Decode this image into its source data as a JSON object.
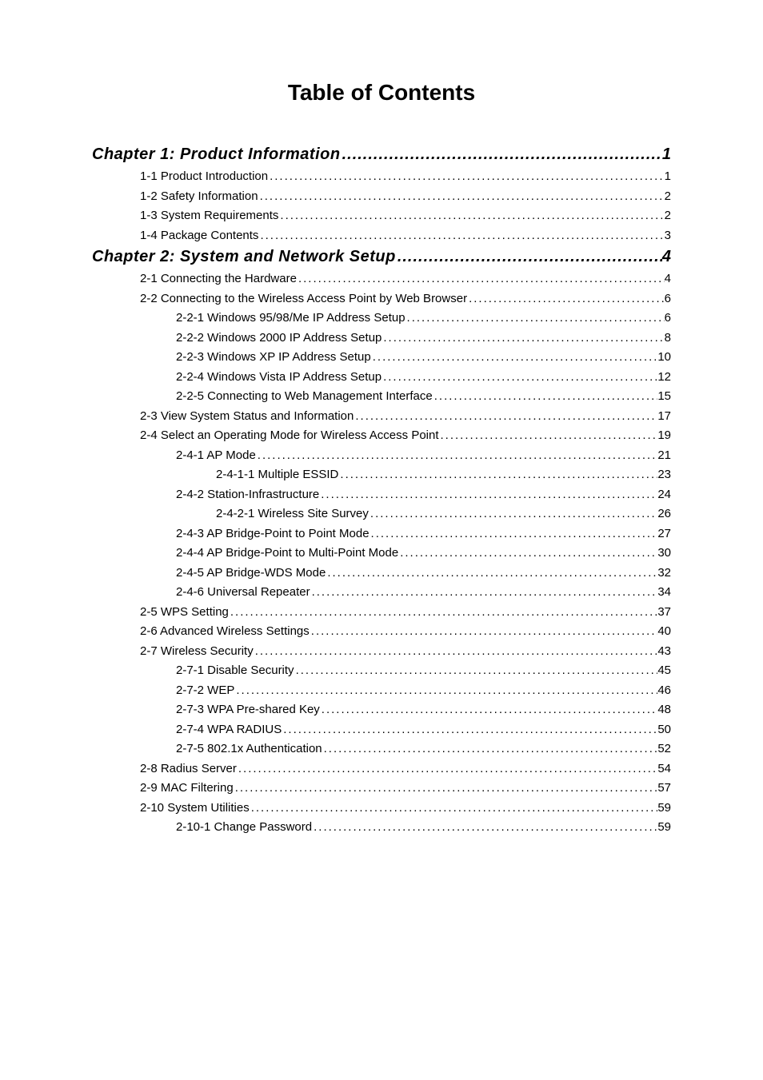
{
  "title": "Table of Contents",
  "entries": [
    {
      "type": "chapter",
      "label": "Chapter 1: Product Information",
      "page": "1"
    },
    {
      "type": "entry",
      "indent": 1,
      "label": "1-1 Product Introduction",
      "page": "1"
    },
    {
      "type": "entry",
      "indent": 1,
      "label": "1-2 Safety Information",
      "page": "2"
    },
    {
      "type": "entry",
      "indent": 1,
      "label": "1-3 System Requirements",
      "page": "2"
    },
    {
      "type": "entry",
      "indent": 1,
      "label": "1-4 Package Contents",
      "page": "3"
    },
    {
      "type": "chapter",
      "label": "Chapter 2: System and Network Setup",
      "page": "4"
    },
    {
      "type": "entry",
      "indent": 1,
      "label": "2-1 Connecting the Hardware",
      "page": "4"
    },
    {
      "type": "entry",
      "indent": 1,
      "label": "2-2 Connecting to the Wireless Access Point by Web Browser",
      "page": "6"
    },
    {
      "type": "entry",
      "indent": 2,
      "label": "2-2-1 Windows 95/98/Me IP Address Setup",
      "page": "6"
    },
    {
      "type": "entry",
      "indent": 2,
      "label": "2-2-2 Windows 2000 IP Address Setup",
      "page": "8"
    },
    {
      "type": "entry",
      "indent": 2,
      "label": "2-2-3 Windows XP IP Address Setup",
      "page": "10"
    },
    {
      "type": "entry",
      "indent": 2,
      "label": "2-2-4 Windows Vista IP Address Setup",
      "page": "12"
    },
    {
      "type": "entry",
      "indent": 2,
      "label": "2-2-5 Connecting to Web Management Interface",
      "page": "15"
    },
    {
      "type": "entry",
      "indent": 1,
      "label": "2-3 View System Status and Information",
      "page": "17"
    },
    {
      "type": "entry",
      "indent": 1,
      "label": "2-4 Select an Operating Mode for Wireless Access Point",
      "page": "19"
    },
    {
      "type": "entry",
      "indent": 2,
      "label": "2-4-1 AP Mode",
      "page": "21"
    },
    {
      "type": "entry",
      "indent": 3,
      "label": "2-4-1-1 Multiple ESSID",
      "page": "23"
    },
    {
      "type": "entry",
      "indent": 2,
      "label": "2-4-2 Station-Infrastructure",
      "page": "24"
    },
    {
      "type": "entry",
      "indent": 3,
      "label": "2-4-2-1 Wireless Site Survey",
      "page": "26"
    },
    {
      "type": "entry",
      "indent": 2,
      "label": "2-4-3 AP Bridge-Point to Point Mode",
      "page": "27"
    },
    {
      "type": "entry",
      "indent": 2,
      "label": "2-4-4 AP Bridge-Point to Multi-Point Mode",
      "page": "30"
    },
    {
      "type": "entry",
      "indent": 2,
      "label": "2-4-5 AP Bridge-WDS Mode",
      "page": "32"
    },
    {
      "type": "entry",
      "indent": 2,
      "label": "2-4-6 Universal Repeater",
      "page": "34"
    },
    {
      "type": "entry",
      "indent": 1,
      "label": "2-5 WPS Setting",
      "page": "37"
    },
    {
      "type": "entry",
      "indent": 1,
      "label": "2-6 Advanced Wireless Settings",
      "page": "40"
    },
    {
      "type": "entry",
      "indent": 1,
      "label": "2-7 Wireless Security",
      "page": "43"
    },
    {
      "type": "entry",
      "indent": 2,
      "label": "2-7-1 Disable Security",
      "page": "45"
    },
    {
      "type": "entry",
      "indent": 2,
      "label": "2-7-2 WEP",
      "page": "46"
    },
    {
      "type": "entry",
      "indent": 2,
      "label": "2-7-3 WPA Pre-shared Key",
      "page": "48"
    },
    {
      "type": "entry",
      "indent": 2,
      "label": "2-7-4 WPA RADIUS",
      "page": "50"
    },
    {
      "type": "entry",
      "indent": 2,
      "label": "2-7-5 802.1x Authentication",
      "page": "52"
    },
    {
      "type": "entry",
      "indent": 1,
      "label": "2-8 Radius Server",
      "page": "54"
    },
    {
      "type": "entry",
      "indent": 1,
      "label": "2-9 MAC Filtering",
      "page": "57"
    },
    {
      "type": "entry",
      "indent": 1,
      "label": "2-10 System Utilities",
      "page": "59"
    },
    {
      "type": "entry",
      "indent": 2,
      "label": "2-10-1 Change Password",
      "page": "59"
    }
  ],
  "styling": {
    "background_color": "#ffffff",
    "text_color": "#000000",
    "title_fontsize": 28,
    "chapter_fontsize": 20,
    "entry_fontsize": 15,
    "dot_leader": "."
  }
}
